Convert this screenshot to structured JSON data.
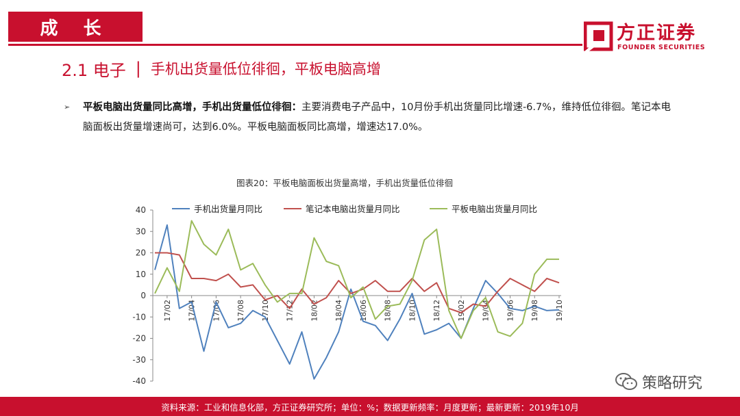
{
  "header": {
    "section_label": "成 长"
  },
  "logo": {
    "cn": "方正证券",
    "en": "FOUNDER SECURITIES"
  },
  "section": {
    "number": "2.1 电子",
    "separator": "|",
    "title": "手机出货量低位徘徊，平板电脑高增"
  },
  "bullet": {
    "marker": "➢",
    "lead": "平板电脑出货量同比高增，手机出货量低位徘徊：",
    "body": "主要消费电子产品中，10月份手机出货量同比增速-6.7%，维持低位徘徊。笔记本电脑面板出货量增速尚可，达到6.0%。平板电脑面板同比高增，增速达17.0%。"
  },
  "footer": {
    "text": "资料来源：工业和信息化部，方正证券研究所；单位：%；数据更新频率：月度更新；最新更新：2019年10月"
  },
  "watermark": {
    "text": "策略研究",
    "icon": "wechat-icon"
  },
  "colors": {
    "brand_red": "#c8102e",
    "phone": "#4f81bd",
    "laptop": "#c0504d",
    "tablet": "#9bbb59"
  },
  "chart_data": {
    "type": "line",
    "title": "图表20：平板电脑面板出货量高增，手机出货量低位徘徊",
    "xlabel": "",
    "ylabel": "",
    "ylim": [
      -40,
      40
    ],
    "yticks": [
      40,
      30,
      20,
      10,
      0,
      -10,
      -20,
      -30,
      -40
    ],
    "x": [
      "17/01",
      "17/02",
      "17/03",
      "17/04",
      "17/05",
      "17/06",
      "17/07",
      "17/08",
      "17/09",
      "17/10",
      "17/11",
      "17/12",
      "18/01",
      "18/02",
      "18/03",
      "18/04",
      "18/05",
      "18/06",
      "18/07",
      "18/08",
      "18/09",
      "18/10",
      "18/11",
      "18/12",
      "19/01",
      "19/02",
      "19/03",
      "19/04",
      "19/05",
      "19/06",
      "19/07",
      "19/08",
      "19/09",
      "19/10"
    ],
    "xtick_labels": [
      "17/02",
      "17/04",
      "17/06",
      "17/08",
      "17/10",
      "17/12",
      "18/02",
      "18/04",
      "18/06",
      "18/08",
      "18/10",
      "18/12",
      "19/02",
      "19/04",
      "19/06",
      "19/08",
      "19/10"
    ],
    "legend_position": "top",
    "series": [
      {
        "name": "手机出货量月同比",
        "color": "#4f81bd",
        "values": [
          12,
          33,
          -6,
          -3,
          -26,
          -3,
          -15,
          -13,
          -7,
          -10,
          -21,
          -32,
          -17,
          -39,
          -29,
          -17,
          3,
          -12,
          -14,
          -21,
          -11,
          1,
          -18,
          -16,
          -13,
          -20,
          -6,
          7,
          1,
          -6,
          -7,
          -5,
          -7,
          -6.7
        ]
      },
      {
        "name": "笔记本电脑出货量月同比",
        "color": "#c0504d",
        "values": [
          20,
          20,
          19,
          8,
          8,
          7,
          10,
          4,
          5,
          -2,
          0,
          -6,
          3,
          -4,
          -1,
          7,
          1,
          3,
          7,
          2,
          2,
          8,
          2,
          6,
          -6,
          -8,
          -4,
          -5,
          2,
          8,
          5,
          2,
          8,
          6.0
        ]
      },
      {
        "name": "平板电脑出货量月同比",
        "color": "#9bbb59",
        "values": [
          1,
          13,
          2,
          35,
          24,
          19,
          31,
          12,
          15,
          5,
          -3,
          1,
          1,
          27,
          16,
          14,
          -1,
          4,
          -11,
          -5,
          -4,
          7,
          26,
          31,
          -7,
          -20,
          -7,
          -1,
          -17,
          -19,
          -13,
          10,
          17,
          17.0
        ]
      }
    ]
  }
}
